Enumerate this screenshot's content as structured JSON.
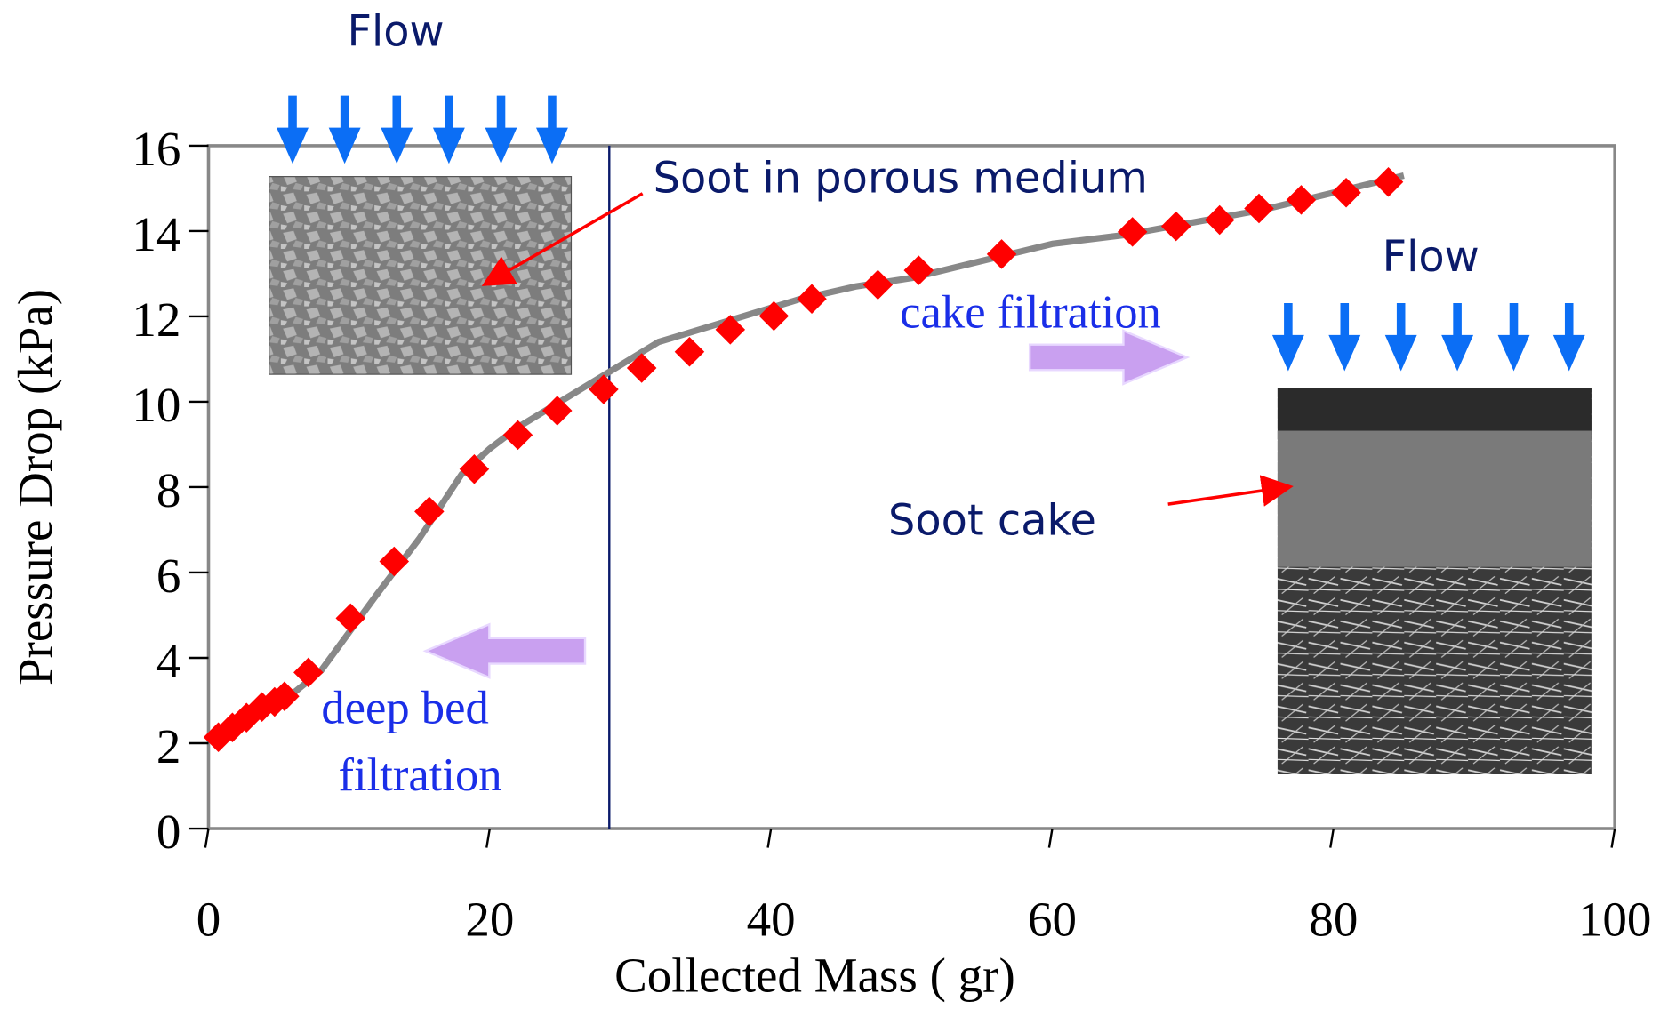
{
  "chart_data": {
    "type": "line",
    "x_label": "Collected Mass (  gr)",
    "y_label": "Pressure Drop (kPa)",
    "xlim": [
      0,
      100
    ],
    "xticks": [
      0,
      20,
      40,
      60,
      80,
      100
    ],
    "ylim": [
      0,
      16
    ],
    "yticks": [
      0,
      2,
      4,
      6,
      8,
      10,
      12,
      14,
      16
    ],
    "vline": 28.5,
    "vline_color": "#0a1a6a",
    "series": [
      {
        "color": "#888888",
        "style": "line",
        "x": [
          0.5,
          3,
          5,
          8,
          10,
          12,
          15,
          18,
          20,
          22,
          25,
          28,
          30,
          32,
          36,
          40,
          42,
          46,
          50,
          55,
          60,
          65,
          70,
          75,
          80,
          85
        ],
        "values": [
          2.1,
          2.6,
          2.9,
          3.7,
          4.6,
          5.5,
          6.8,
          8.3,
          8.9,
          9.4,
          10.0,
          10.6,
          11.0,
          11.4,
          11.8,
          12.2,
          12.4,
          12.7,
          12.9,
          13.3,
          13.7,
          13.9,
          14.2,
          14.5,
          14.9,
          15.3
        ]
      },
      {
        "color": "#ff0000",
        "style": "diamond",
        "x": [
          0.7,
          1.7,
          2.7,
          3.8,
          4.7,
          5.4,
          7.1,
          10.1,
          13.2,
          15.7,
          18.9,
          22.0,
          24.8,
          28.1,
          30.8,
          34.2,
          37.1,
          40.2,
          42.9,
          47.6,
          50.5,
          56.4,
          65.7,
          68.8,
          71.9,
          74.7,
          77.7,
          80.9,
          83.9
        ],
        "values": [
          2.14,
          2.37,
          2.6,
          2.85,
          2.97,
          3.1,
          3.66,
          4.93,
          6.26,
          7.43,
          8.42,
          9.22,
          9.79,
          10.29,
          10.79,
          11.17,
          11.69,
          12.01,
          12.41,
          12.74,
          13.08,
          13.46,
          13.98,
          14.11,
          14.26,
          14.53,
          14.73,
          14.9,
          15.15
        ]
      }
    ],
    "annotations": [
      "Flow",
      "Soot in porous medium",
      "cake filtration",
      "Flow",
      "Soot cake",
      "deep bed",
      "filtration"
    ]
  }
}
